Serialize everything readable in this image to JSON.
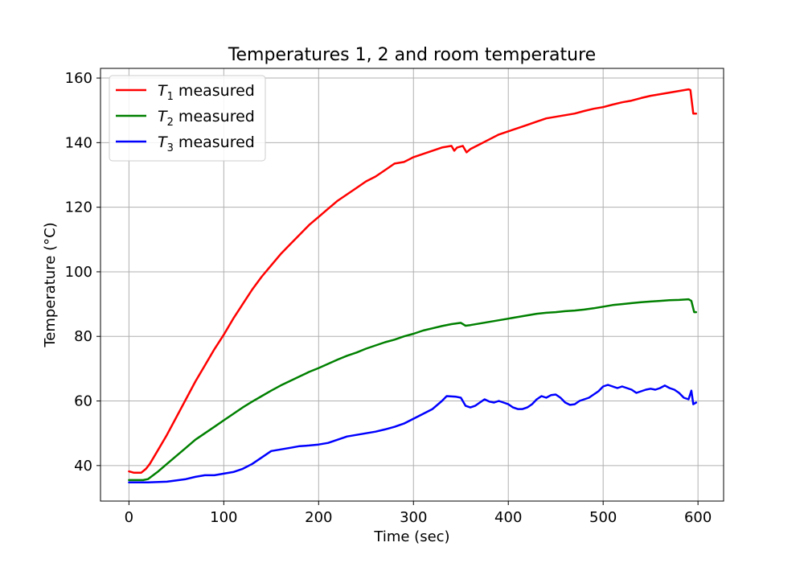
{
  "chart_data": {
    "type": "line",
    "title": "Temperatures 1, 2 and room temperature",
    "xlabel": "Time (sec)",
    "ylabel": "Temperature (°C)",
    "xlim": [
      -30,
      627
    ],
    "ylim": [
      29,
      163
    ],
    "xticks": [
      0,
      100,
      200,
      300,
      400,
      500,
      600
    ],
    "yticks": [
      40,
      60,
      80,
      100,
      120,
      140,
      160
    ],
    "grid": true,
    "legend_position": "top-left",
    "series": [
      {
        "name": "T1 measured",
        "legend_symbol": "T",
        "legend_sub": "1",
        "legend_rest": " measured",
        "color": "#ff0000",
        "x": [
          0,
          5,
          13,
          18,
          22,
          30,
          40,
          50,
          60,
          70,
          80,
          90,
          100,
          110,
          120,
          130,
          140,
          150,
          160,
          170,
          180,
          190,
          200,
          210,
          220,
          230,
          240,
          250,
          260,
          270,
          280,
          290,
          300,
          310,
          320,
          330,
          340,
          343,
          346,
          352,
          356,
          360,
          370,
          380,
          390,
          400,
          410,
          420,
          430,
          440,
          450,
          460,
          470,
          480,
          490,
          500,
          510,
          520,
          530,
          540,
          550,
          560,
          570,
          580,
          590,
          592,
          595,
          598
        ],
        "y": [
          38.2,
          37.8,
          37.8,
          39.0,
          40.5,
          44.5,
          49.5,
          55.0,
          60.5,
          66.0,
          71.0,
          76.0,
          80.5,
          85.5,
          90.0,
          94.5,
          98.5,
          102.0,
          105.5,
          108.5,
          111.5,
          114.5,
          117.0,
          119.5,
          122.0,
          124.0,
          126.0,
          128.0,
          129.5,
          131.5,
          133.5,
          134.0,
          135.5,
          136.5,
          137.5,
          138.5,
          139.0,
          137.5,
          138.5,
          139.0,
          137.0,
          138.0,
          139.5,
          141.0,
          142.5,
          143.5,
          144.5,
          145.5,
          146.5,
          147.5,
          148.0,
          148.5,
          149.0,
          149.8,
          150.5,
          151.0,
          151.8,
          152.5,
          153.0,
          153.8,
          154.5,
          155.0,
          155.5,
          156.0,
          156.5,
          156.3,
          149.0,
          149.0
        ]
      },
      {
        "name": "T2 measured",
        "legend_symbol": "T",
        "legend_sub": "2",
        "legend_rest": " measured",
        "color": "#008000",
        "x": [
          0,
          10,
          15,
          20,
          30,
          40,
          50,
          60,
          70,
          80,
          90,
          100,
          110,
          120,
          130,
          140,
          150,
          160,
          170,
          180,
          190,
          200,
          210,
          220,
          230,
          240,
          250,
          260,
          270,
          280,
          290,
          300,
          310,
          320,
          330,
          340,
          350,
          355,
          360,
          370,
          380,
          390,
          400,
          410,
          420,
          430,
          440,
          450,
          460,
          470,
          480,
          490,
          500,
          510,
          520,
          530,
          540,
          550,
          560,
          570,
          580,
          590,
          593,
          596,
          598
        ],
        "y": [
          35.5,
          35.5,
          35.5,
          35.8,
          38.0,
          40.5,
          43.0,
          45.5,
          48.0,
          50.0,
          52.0,
          54.0,
          56.0,
          58.0,
          59.8,
          61.5,
          63.2,
          64.8,
          66.2,
          67.6,
          69.0,
          70.2,
          71.5,
          72.8,
          74.0,
          75.0,
          76.2,
          77.2,
          78.2,
          79.0,
          80.0,
          80.8,
          81.8,
          82.5,
          83.2,
          83.8,
          84.2,
          83.3,
          83.5,
          84.0,
          84.5,
          85.0,
          85.5,
          86.0,
          86.5,
          87.0,
          87.3,
          87.5,
          87.8,
          88.0,
          88.3,
          88.7,
          89.2,
          89.7,
          90.0,
          90.3,
          90.6,
          90.8,
          91.0,
          91.2,
          91.3,
          91.5,
          91.0,
          87.5,
          87.5
        ]
      },
      {
        "name": "T3 measured",
        "legend_symbol": "T",
        "legend_sub": "3",
        "legend_rest": " measured",
        "color": "#0000ff",
        "x": [
          0,
          20,
          40,
          60,
          70,
          80,
          90,
          100,
          110,
          120,
          130,
          140,
          150,
          160,
          170,
          180,
          190,
          200,
          210,
          220,
          230,
          240,
          250,
          260,
          270,
          280,
          290,
          300,
          310,
          320,
          330,
          335,
          345,
          350,
          355,
          360,
          365,
          370,
          375,
          380,
          385,
          390,
          395,
          400,
          405,
          410,
          415,
          420,
          425,
          430,
          435,
          440,
          445,
          450,
          455,
          460,
          465,
          470,
          475,
          480,
          485,
          490,
          495,
          500,
          505,
          510,
          515,
          520,
          525,
          530,
          535,
          540,
          545,
          550,
          555,
          560,
          565,
          570,
          575,
          580,
          585,
          590,
          593,
          595,
          598
        ],
        "y": [
          34.8,
          34.8,
          35.0,
          35.8,
          36.5,
          37.0,
          37.0,
          37.5,
          38.0,
          39.0,
          40.5,
          42.5,
          44.5,
          45.0,
          45.5,
          46.0,
          46.2,
          46.5,
          47.0,
          48.0,
          49.0,
          49.5,
          50.0,
          50.5,
          51.2,
          52.0,
          53.0,
          54.5,
          56.0,
          57.5,
          60.0,
          61.5,
          61.3,
          61.0,
          58.5,
          58.0,
          58.5,
          59.5,
          60.5,
          59.8,
          59.5,
          60.0,
          59.5,
          59.0,
          58.0,
          57.5,
          57.5,
          58.0,
          59.0,
          60.5,
          61.5,
          61.0,
          61.8,
          62.0,
          61.0,
          59.5,
          58.8,
          59.0,
          60.0,
          60.5,
          61.0,
          62.0,
          63.0,
          64.5,
          65.0,
          64.5,
          64.0,
          64.5,
          64.0,
          63.5,
          62.5,
          63.0,
          63.5,
          63.8,
          63.5,
          64.0,
          64.8,
          64.0,
          63.5,
          62.5,
          61.0,
          60.5,
          63.2,
          59.0,
          59.5
        ]
      }
    ]
  }
}
